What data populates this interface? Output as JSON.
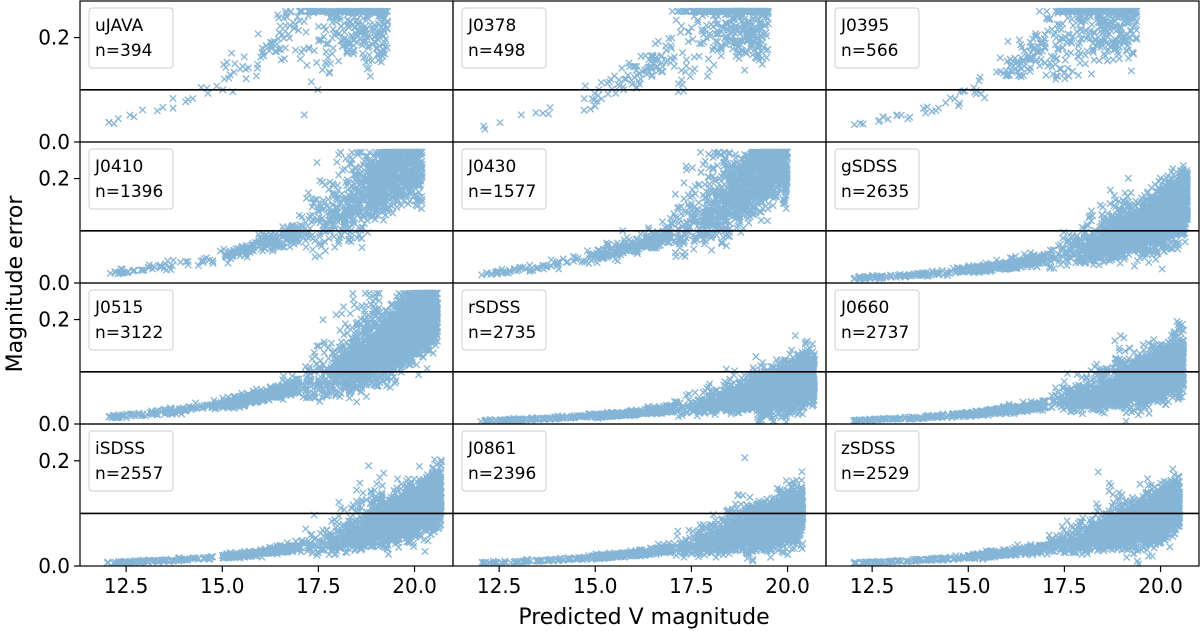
{
  "chart_data": {
    "type": "scatter",
    "layout": "4x3 grid, shared axes",
    "xlabel": "Predicted V magnitude",
    "ylabel": "Magnitude error",
    "xlim": [
      11.3,
      21.0
    ],
    "ylim": [
      0.0,
      0.27
    ],
    "xticks": [
      12.5,
      15.0,
      17.5,
      20.0
    ],
    "xtick_labels": [
      "12.5",
      "15.0",
      "17.5",
      "20.0"
    ],
    "yticks": [
      0.0,
      0.2
    ],
    "ytick_labels": [
      "0.0",
      "0.2"
    ],
    "threshold_line": 0.1,
    "marker": "x",
    "color": "#1f77b4",
    "panels": [
      {
        "filter": "uJAVA",
        "count_label": "n=394",
        "n": 394,
        "curve": {
          "a": 0.04,
          "k": 0.36,
          "max": 0.215,
          "xmax": 19.3,
          "spread": 0.35
        }
      },
      {
        "filter": "J0378",
        "count_label": "n=498",
        "n": 498,
        "curve": {
          "a": 0.03,
          "k": 0.36,
          "max": 0.225,
          "xmax": 19.5,
          "spread": 0.33
        }
      },
      {
        "filter": "J0395",
        "count_label": "n=566",
        "n": 566,
        "curve": {
          "a": 0.032,
          "k": 0.36,
          "max": 0.225,
          "xmax": 19.4,
          "spread": 0.33
        }
      },
      {
        "filter": "J0410",
        "count_label": "n=1396",
        "n": 1396,
        "curve": {
          "a": 0.019,
          "k": 0.33,
          "max": 0.225,
          "xmax": 20.2,
          "spread": 0.3
        }
      },
      {
        "filter": "J0430",
        "count_label": "n=1577",
        "n": 1577,
        "curve": {
          "a": 0.018,
          "k": 0.34,
          "max": 0.225,
          "xmax": 20.0,
          "spread": 0.3
        }
      },
      {
        "filter": "gSDSS",
        "count_label": "n=2635",
        "n": 2635,
        "curve": {
          "a": 0.009,
          "k": 0.33,
          "max": 0.16,
          "xmax": 20.7,
          "spread": 0.3
        }
      },
      {
        "filter": "J0515",
        "count_label": "n=3122",
        "n": 3122,
        "curve": {
          "a": 0.014,
          "k": 0.33,
          "max": 0.24,
          "xmax": 20.6,
          "spread": 0.3
        }
      },
      {
        "filter": "rSDSS",
        "count_label": "n=2735",
        "n": 2735,
        "curve": {
          "a": 0.006,
          "k": 0.31,
          "max": 0.12,
          "xmax": 20.7,
          "spread": 0.3
        }
      },
      {
        "filter": "J0660",
        "count_label": "n=2737",
        "n": 2737,
        "curve": {
          "a": 0.007,
          "k": 0.33,
          "max": 0.175,
          "xmax": 20.6,
          "spread": 0.32
        }
      },
      {
        "filter": "iSDSS",
        "count_label": "n=2557",
        "n": 2557,
        "curve": {
          "a": 0.006,
          "k": 0.36,
          "max": 0.17,
          "xmax": 20.7,
          "spread": 0.32
        }
      },
      {
        "filter": "J0861",
        "count_label": "n=2396",
        "n": 2396,
        "curve": {
          "a": 0.006,
          "k": 0.34,
          "max": 0.2,
          "xmax": 20.4,
          "spread": 0.32
        }
      },
      {
        "filter": "zSDSS",
        "count_label": "n=2529",
        "n": 2529,
        "curve": {
          "a": 0.006,
          "k": 0.35,
          "max": 0.22,
          "xmax": 20.5,
          "spread": 0.32
        }
      }
    ]
  }
}
